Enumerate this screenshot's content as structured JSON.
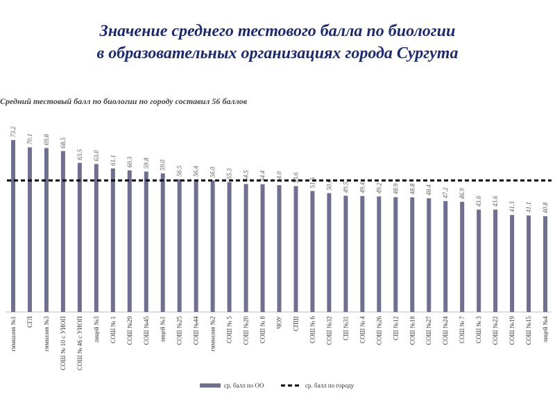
{
  "chart_data": {
    "type": "bar",
    "title_lines": [
      "Значение среднего тестового балла по биологии",
      "в образовательных организациях города Сургута"
    ],
    "subtitle": "Средний тестовый балл по биологии по городу составил 56 баллов",
    "categories": [
      "гимназия №1",
      "СГЛ",
      "гимназия №3",
      "СОШ № 10 с УИОП",
      "СОШ № 46 с УИОП",
      "лицей №3",
      "СОШ № 1",
      "СОШ №29",
      "СОШ №45",
      "лицей №1",
      "СОШ №25",
      "СОШ №44",
      "гимназия №2",
      "СОШ № 5",
      "СОШ №20",
      "СОШ № 8",
      "ЧОУ",
      "СПШ",
      "СОШ № 6",
      "СОШ №32",
      "СШ №31",
      "СОШ № 4",
      "СОШ №26",
      "СШ №12",
      "СОШ №18",
      "СОШ №27",
      "СОШ №24",
      "СОШ № 7",
      "СОШ № 3",
      "СОШ №22",
      "СОШ №19",
      "СОШ №15",
      "лицей №4"
    ],
    "series": [
      {
        "name": "ср. балл по ОО",
        "color": "#6f6f8f",
        "values": [
          73.2,
          70.1,
          69.8,
          68.5,
          63.5,
          63.0,
          61.1,
          60.3,
          59.8,
          59.0,
          56.5,
          56.4,
          56.0,
          55.3,
          54.5,
          54.4,
          54.0,
          53.6,
          51.5,
          50.6,
          49.5,
          49.4,
          49.2,
          48.9,
          48.8,
          48.4,
          47.2,
          46.9,
          43.6,
          43.6,
          41.3,
          41.1,
          40.8
        ],
        "value_labels": [
          "73.2",
          "70.1",
          "69.8",
          "68.5",
          "63.5",
          "63.0",
          "61.1",
          "60.3",
          "59.8",
          "59.0",
          "56.5",
          "56.4",
          "56.0",
          "55.3",
          "54.5",
          "54.4",
          "54.0",
          "53.6",
          "51.5",
          "50.6",
          "49.5",
          "49.4",
          "49.2",
          "48.9",
          "48.8",
          "48.4",
          "47.2",
          "46.9",
          "43.6",
          "43.6",
          "41.3",
          "41.1",
          "40.8"
        ]
      }
    ],
    "average": {
      "name": "ср. балл по городу",
      "value": 56,
      "color": "#000000"
    }
  }
}
